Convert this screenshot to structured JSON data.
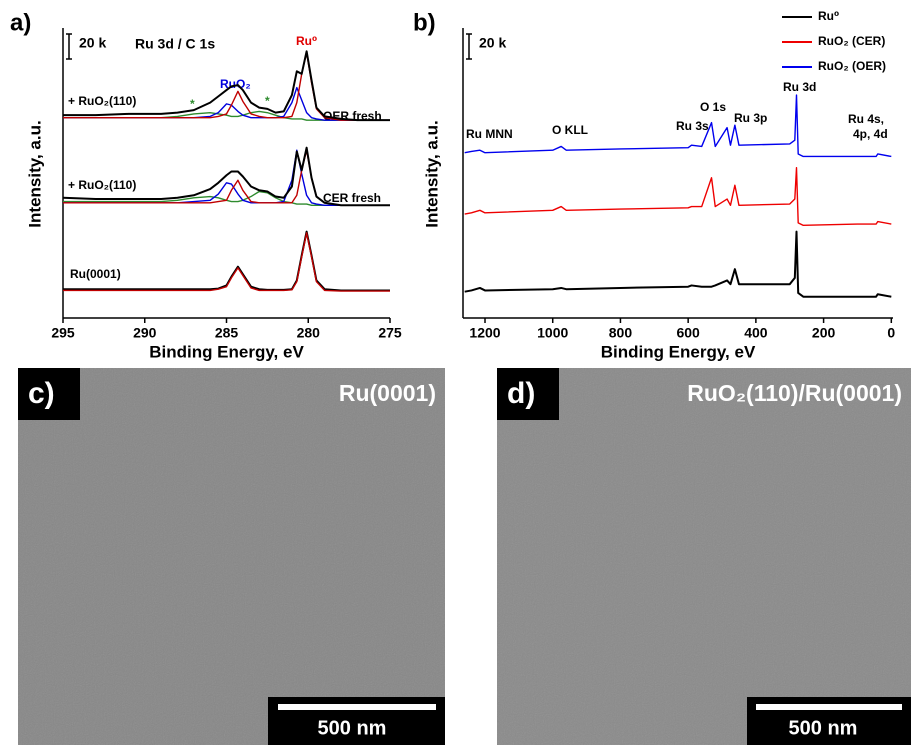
{
  "chart_data": [
    {
      "type": "line",
      "panel_label": "a)",
      "title": "Ru 3d / C 1s",
      "x_label": "Binding Energy, eV",
      "y_label": "Intensity, a.u.",
      "scale_bar": {
        "value": 20,
        "label": "20 k"
      },
      "annotations": [
        "Ru⁰",
        "RuO₂",
        "+ RuO₂(110)",
        "+ RuO₂(110)",
        "OER fresh",
        "CER fresh",
        "Ru(0001)",
        "*",
        "*"
      ],
      "xlim": [
        295,
        275
      ],
      "xticks": [
        295,
        290,
        285,
        280,
        275
      ],
      "ylim": [
        0,
        230
      ],
      "x": [
        295,
        293,
        291,
        289,
        288,
        287,
        286,
        285.5,
        285,
        284.7,
        284.3,
        284,
        283.5,
        283,
        282.5,
        282,
        281.5,
        281,
        280.7,
        280.4,
        280.1,
        279.8,
        279.5,
        279,
        278,
        277,
        275
      ],
      "series": [
        {
          "color": "#000000",
          "values": [
            23,
            23,
            23,
            23,
            23,
            23,
            23,
            23.5,
            26,
            33,
            41,
            35,
            25,
            23,
            22.5,
            22.5,
            22.5,
            23,
            30,
            50,
            69,
            50,
            30,
            23,
            22,
            22,
            22
          ]
        },
        {
          "color": "#c00000",
          "values": [
            22,
            22,
            22,
            22,
            22,
            22,
            22,
            23,
            25,
            32,
            40,
            34,
            24,
            22,
            22,
            22,
            22,
            22.5,
            29,
            49,
            68,
            49,
            29,
            22,
            21.5,
            21.5,
            21.5
          ]
        },
        {
          "color": "#2e8b2e",
          "values": [
            93,
            93,
            93,
            93,
            94,
            96,
            97,
            96,
            94,
            93,
            93,
            94,
            97,
            101,
            100,
            96,
            93,
            92,
            91,
            91,
            91,
            90,
            90,
            90,
            90,
            90,
            90
          ]
        },
        {
          "color": "#0000dd",
          "values": [
            92,
            92,
            92,
            92,
            92,
            93,
            94,
            99,
            108,
            107,
            99,
            94,
            92,
            92,
            92,
            92,
            93,
            110,
            134,
            115,
            98,
            92,
            91,
            90,
            90,
            90,
            90
          ]
        },
        {
          "color": "#c00000",
          "values": [
            92,
            92,
            92,
            92,
            92,
            92,
            92,
            93,
            94,
            102,
            110,
            102,
            93,
            92,
            92,
            92,
            92,
            92,
            98,
            118,
            134,
            112,
            97,
            92,
            90,
            90,
            90
          ]
        },
        {
          "color": "#000000",
          "values": [
            96,
            95,
            95,
            95,
            96,
            98,
            103,
            108,
            114,
            117,
            117,
            113,
            105,
            102,
            101,
            97,
            96,
            105,
            133,
            118,
            136,
            112,
            97,
            92,
            90,
            90,
            90
          ]
        },
        {
          "color": "#2e8b2e",
          "values": [
            160,
            160,
            160,
            160,
            161,
            163,
            164,
            163,
            162,
            161,
            161,
            162,
            164,
            165,
            164,
            162,
            160,
            159,
            159,
            159,
            158,
            158,
            158,
            158,
            158,
            158,
            158
          ]
        },
        {
          "color": "#0000dd",
          "values": [
            160,
            160,
            160,
            160,
            160,
            160,
            161,
            164,
            171,
            170,
            165,
            162,
            160,
            160,
            160,
            160,
            161,
            172,
            184,
            174,
            164,
            160,
            159,
            158,
            158,
            158,
            158
          ]
        },
        {
          "color": "#c00000",
          "values": [
            160,
            160,
            160,
            160,
            160,
            160,
            160,
            161,
            163,
            170,
            181,
            173,
            163,
            161,
            160,
            160,
            160,
            161,
            172,
            195,
            212,
            188,
            167,
            160,
            158,
            158,
            158
          ]
        },
        {
          "color": "#000000",
          "values": [
            162,
            162,
            163,
            163,
            164,
            166,
            172,
            177,
            182,
            185,
            186,
            182,
            172,
            168,
            167,
            164,
            165,
            178,
            197,
            195,
            213,
            190,
            168,
            161,
            159,
            158,
            158
          ]
        }
      ]
    },
    {
      "type": "line",
      "panel_label": "b)",
      "x_label": "Binding Energy, eV",
      "y_label": "Intensity, a.u.",
      "scale_bar": {
        "value": 20,
        "label": "20 k"
      },
      "annotations": [
        "Ru MNN",
        "O KLL",
        "Ru 3s",
        "O 1s",
        "Ru 3p",
        "Ru 3d",
        "Ru 4s,",
        "4p, 4d"
      ],
      "xlim": [
        1265,
        -5
      ],
      "xticks": [
        1200,
        1000,
        800,
        600,
        400,
        200,
        0
      ],
      "ylim": [
        0,
        230
      ],
      "x": [
        1260,
        1240,
        1215,
        1200,
        1000,
        975,
        960,
        800,
        600,
        590,
        560,
        531,
        520,
        485,
        475,
        462,
        450,
        300,
        285,
        280,
        275,
        260,
        100,
        45,
        40,
        0
      ],
      "series": [
        {
          "name": "Ru⁰",
          "color": "#000000",
          "values": [
            21,
            22,
            24,
            22,
            23,
            24,
            23,
            24,
            25,
            26,
            25,
            25,
            26,
            30,
            27,
            39,
            27,
            27,
            32,
            69,
            20,
            17,
            17,
            17,
            19,
            17
          ]
        },
        {
          "name": "RuO₂ (CER)",
          "color": "#ee0000",
          "values": [
            83,
            84,
            86,
            84,
            86,
            89,
            86,
            87,
            88,
            89,
            89,
            112,
            89,
            95,
            90,
            106,
            90,
            91,
            95,
            120,
            76,
            74,
            75,
            75,
            77,
            75
          ]
        },
        {
          "name": "RuO₂ (OER)",
          "color": "#0000ee",
          "values": [
            132,
            133,
            134,
            132,
            134,
            137,
            134,
            135,
            136,
            138,
            137,
            156,
            137,
            152,
            138,
            154,
            138,
            139,
            142,
            178,
            131,
            129,
            129,
            129,
            131,
            129
          ]
        }
      ]
    }
  ],
  "images": [
    {
      "panel_label": "c)",
      "label": "Ru(0001)",
      "scale_bar": "500 nm"
    },
    {
      "panel_label": "d)",
      "label": "RuO₂(110)/Ru(0001)",
      "scale_bar": "500 nm"
    }
  ]
}
